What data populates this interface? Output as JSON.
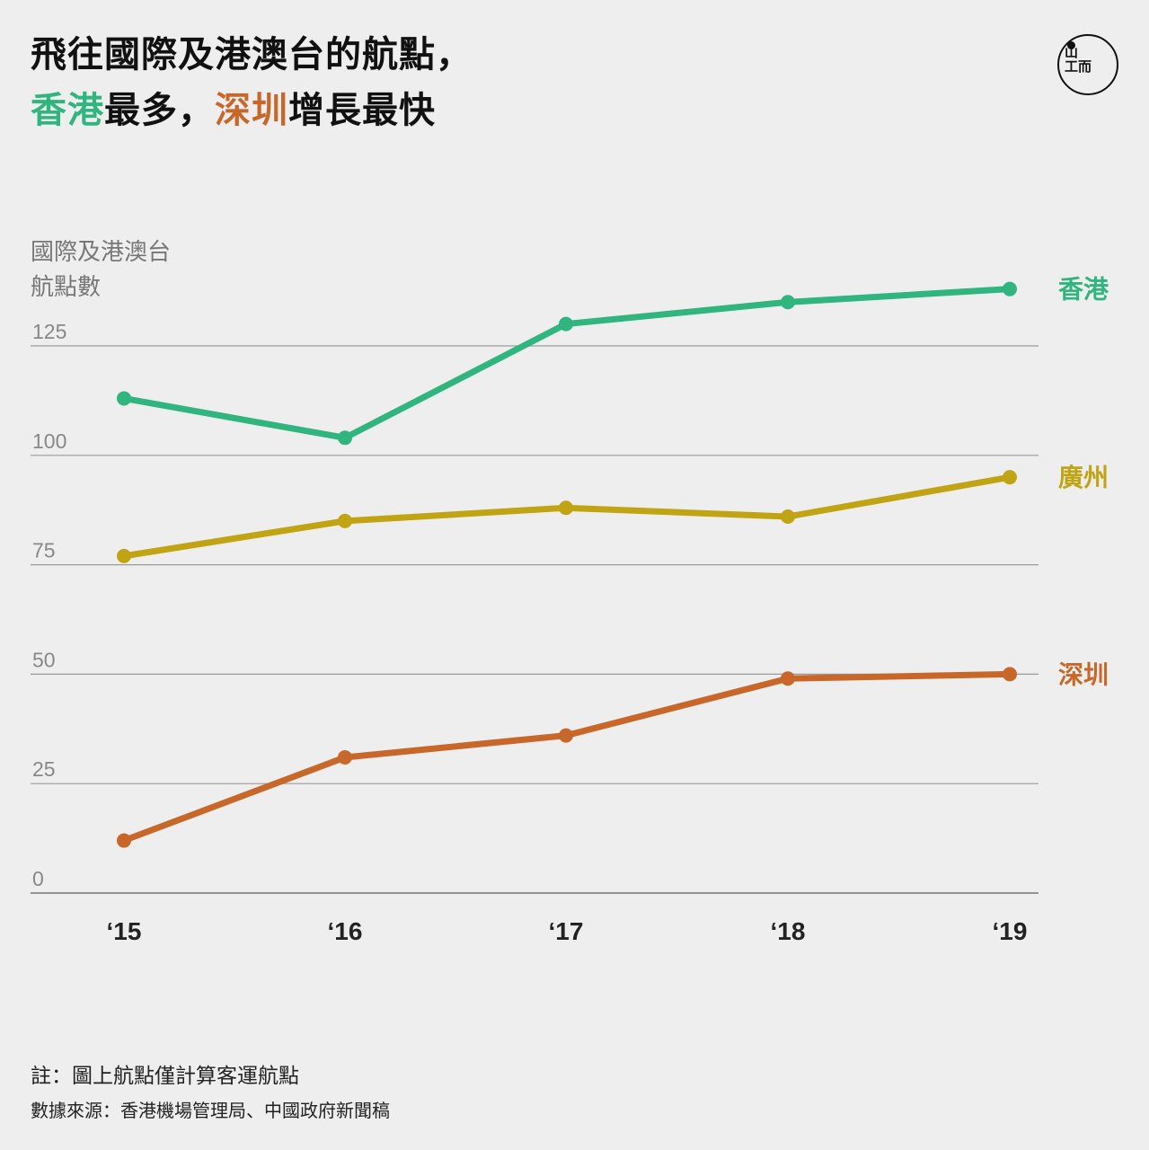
{
  "title": {
    "line1": "飛往國際及港澳台的航點，",
    "line2_parts": [
      {
        "text": "香港",
        "color": "#2fb57d"
      },
      {
        "text": "最多，",
        "color": "#111111"
      },
      {
        "text": "深圳",
        "color": "#c8672a"
      },
      {
        "text": "增長最快",
        "color": "#111111"
      }
    ]
  },
  "logo": {
    "icon": "initium-logo-icon",
    "glyph_top": "山",
    "glyph_bottom": "工而"
  },
  "chart_data": {
    "type": "line",
    "ylabel": [
      "國際及港澳台",
      "航點數"
    ],
    "xlabel": "",
    "categories": [
      "‘15",
      "‘16",
      "‘17",
      "‘18",
      "‘19"
    ],
    "yticks": [
      0,
      25,
      50,
      75,
      100,
      125
    ],
    "ylim": [
      0,
      125
    ],
    "grid": true,
    "legend": "right-end-labels",
    "series": [
      {
        "name": "香港",
        "color": "#2fb57d",
        "values": [
          113,
          104,
          130,
          135,
          138
        ]
      },
      {
        "name": "廣州",
        "color": "#c0a414",
        "values": [
          77,
          85,
          88,
          86,
          95
        ]
      },
      {
        "name": "深圳",
        "color": "#c8672a",
        "values": [
          12,
          31,
          36,
          49,
          50
        ]
      }
    ]
  },
  "footer": {
    "note": "註：圖上航點僅計算客運航點",
    "source": "數據來源：香港機場管理局、中國政府新聞稿"
  }
}
